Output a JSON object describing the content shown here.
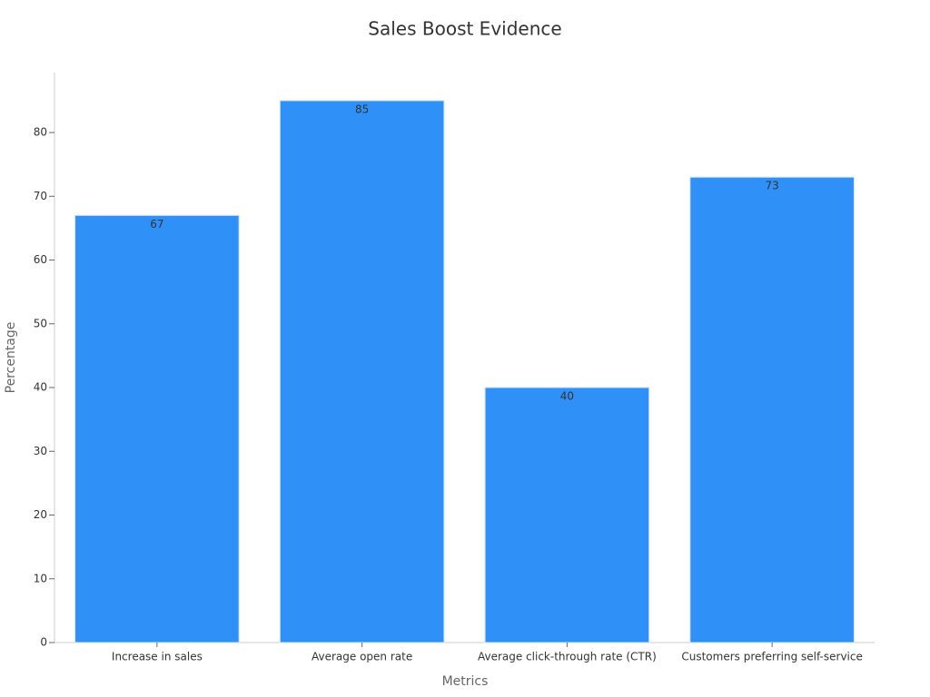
{
  "chart_data": {
    "type": "bar",
    "title": "Sales Boost Evidence",
    "x_label": "Metrics",
    "y_label": "Percentage",
    "categories": [
      "Increase in sales",
      "Average open rate",
      "Average click-through rate (CTR)",
      "Customers preferring self-service"
    ],
    "values": [
      67,
      85,
      40,
      73
    ],
    "color": "#2f91f8",
    "ylim": [
      0,
      89.4
    ],
    "yticks": [
      0,
      10,
      20,
      30,
      40,
      50,
      60,
      70,
      80
    ],
    "grid": false
  }
}
